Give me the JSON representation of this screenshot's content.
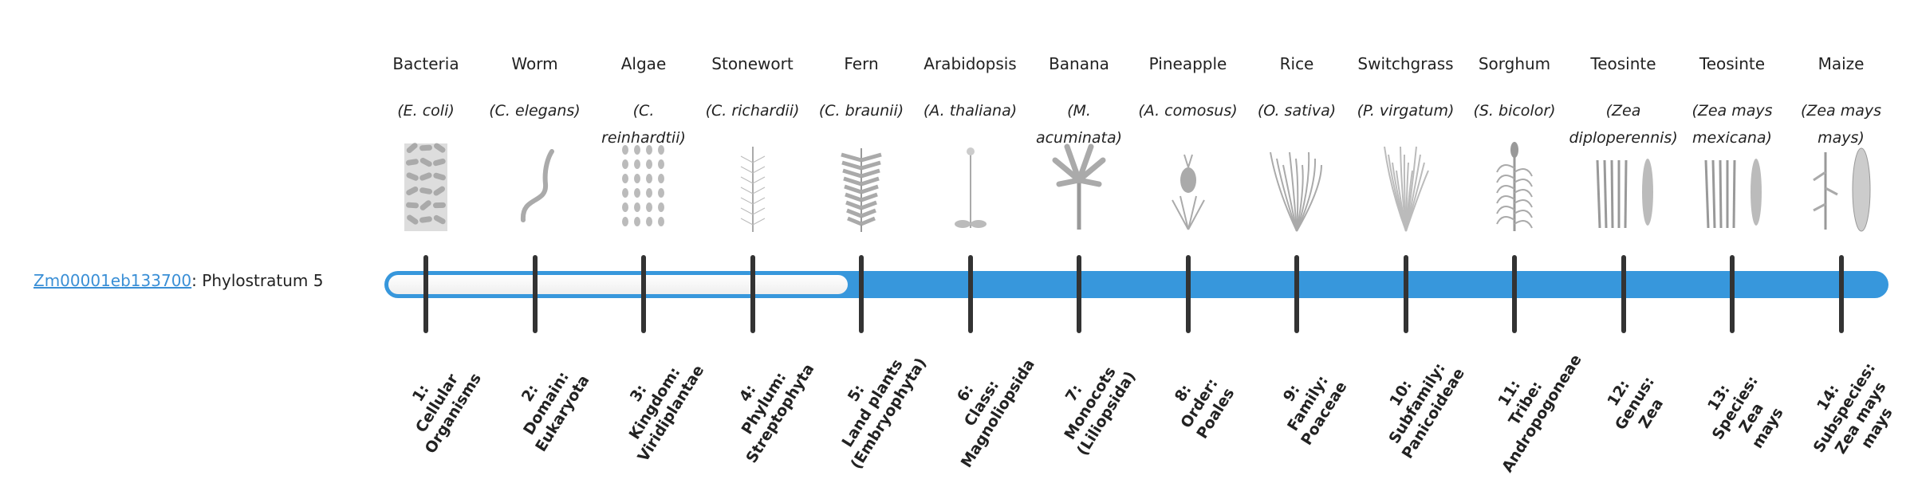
{
  "gene": {
    "id": "Zm00001eb133700",
    "suffix": ": Phylostratum 5"
  },
  "phylostratum": 5,
  "accent_color": "#3797dc",
  "organisms": [
    {
      "common": "Bacteria",
      "species": "(E. coli)",
      "icon": "rod-bacteria-icon",
      "stratum": "1:\nCellular\nOrganisms"
    },
    {
      "common": "Worm",
      "species": "(C. elegans)",
      "icon": "worm-icon",
      "stratum": "2:\nDomain:\nEukaryota"
    },
    {
      "common": "Algae",
      "species": "(C. reinhardtii)",
      "icon": "algae-cells-icon",
      "stratum": "3:\nKingdom:\nViridiplantae"
    },
    {
      "common": "Stonewort",
      "species": "(C. richardii)",
      "icon": "stonewort-icon",
      "stratum": "4:\nPhylum:\nStreptophyta"
    },
    {
      "common": "Fern",
      "species": "(C. braunii)",
      "icon": "fern-icon",
      "stratum": "5:\nLand plants\n(Embryophyta)"
    },
    {
      "common": "Arabidopsis",
      "species": "(A. thaliana)",
      "icon": "arabidopsis-icon",
      "stratum": "6:\nClass:\nMagnoliopsida"
    },
    {
      "common": "Banana",
      "species": "(M. acuminata)",
      "icon": "banana-plant-icon",
      "stratum": "7:\nMonocots\n(Liliopsida)"
    },
    {
      "common": "Pineapple",
      "species": "(A. comosus)",
      "icon": "pineapple-icon",
      "stratum": "8:\nOrder:\nPoales"
    },
    {
      "common": "Rice",
      "species": "(O. sativa)",
      "icon": "rice-icon",
      "stratum": "9:\nFamily:\nPoaceae"
    },
    {
      "common": "Switchgrass",
      "species": "(P. virgatum)",
      "icon": "switchgrass-icon",
      "stratum": "10:\nSubfamily:\nPanicoideae"
    },
    {
      "common": "Sorghum",
      "species": "(S. bicolor)",
      "icon": "sorghum-icon",
      "stratum": "11:\nTribe:\nAndropogoneae"
    },
    {
      "common": "Teosinte",
      "species": "(Zea diploperennis)",
      "icon": "teosinte-icon",
      "stratum": "12:\nGenus:\nZea"
    },
    {
      "common": "Teosinte",
      "species": "(Zea mays mexicana)",
      "icon": "teosinte-icon",
      "stratum": "13:\nSpecies:\nZea\nmays"
    },
    {
      "common": "Maize",
      "species": "(Zea mays mays)",
      "icon": "maize-icon",
      "stratum": "14:\nSubspecies:\nZea mays\nmays"
    }
  ]
}
